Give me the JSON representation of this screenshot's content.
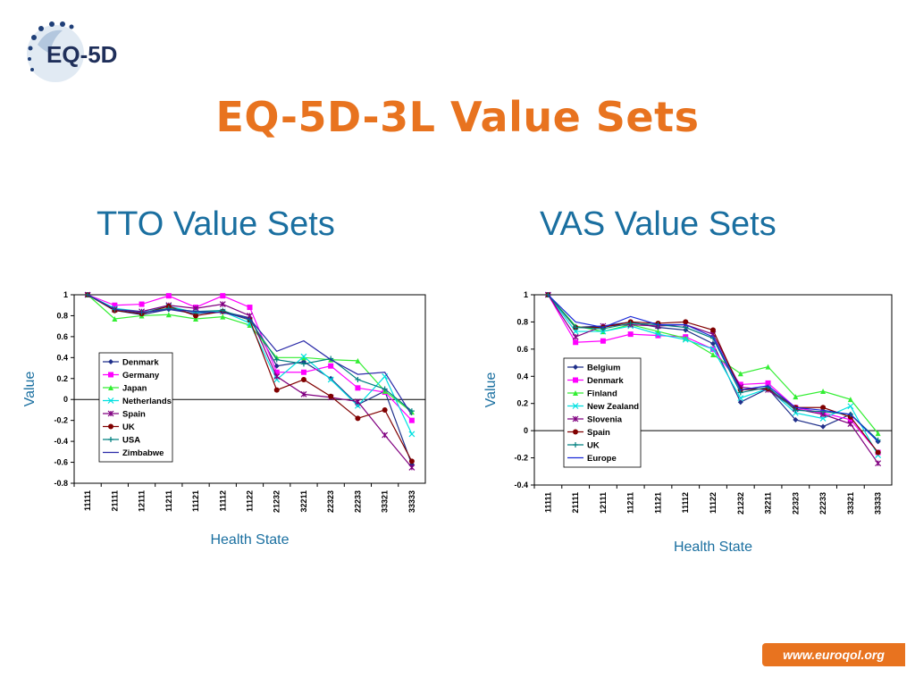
{
  "header": {
    "logo_text": "EQ-5D",
    "title": "EQ-5D-3L Value Sets",
    "left_subtitle": "TTO Value Sets",
    "right_subtitle": "VAS Value Sets",
    "footer_url": "www.euroqol.org"
  },
  "chart_data": [
    {
      "type": "line",
      "title": "TTO Value Sets",
      "xlabel": "Health State",
      "ylabel": "Value",
      "categories": [
        "11111",
        "21111",
        "12111",
        "11211",
        "11121",
        "11112",
        "11122",
        "21232",
        "32211",
        "22323",
        "22233",
        "33321",
        "33333"
      ],
      "ylim": [
        -0.8,
        1
      ],
      "yticks": [
        1,
        0.8,
        0.6,
        0.4,
        0.2,
        0,
        -0.2,
        -0.4,
        -0.6,
        -0.8
      ],
      "ytick_labels": [
        "1",
        "0.8",
        "0.6",
        "0.4",
        "0.2",
        "0",
        "-0.2",
        "-0.4",
        "-0.6",
        "-0.8"
      ],
      "grid": false,
      "legend_position": "left",
      "series": [
        {
          "name": "Denmark",
          "color": "#1f2f8a",
          "marker": "diamond",
          "values": [
            1,
            0.85,
            0.81,
            0.86,
            0.82,
            0.84,
            0.78,
            0.32,
            0.36,
            0.2,
            -0.05,
            0.08,
            -0.62
          ]
        },
        {
          "name": "Germany",
          "color": "#ff00ff",
          "marker": "square",
          "values": [
            1,
            0.9,
            0.91,
            0.99,
            0.88,
            0.99,
            0.88,
            0.26,
            0.26,
            0.32,
            0.11,
            0.07,
            -0.2
          ]
        },
        {
          "name": "Japan",
          "color": "#33ee33",
          "marker": "triangle",
          "values": [
            1,
            0.77,
            0.8,
            0.81,
            0.77,
            0.79,
            0.71,
            0.4,
            0.4,
            0.38,
            0.37,
            0.08,
            -0.12
          ]
        },
        {
          "name": "Netherlands",
          "color": "#00e0e0",
          "marker": "x",
          "values": [
            1,
            0.87,
            0.84,
            0.89,
            0.83,
            0.84,
            0.73,
            0.19,
            0.41,
            0.19,
            -0.06,
            0.22,
            -0.33
          ]
        },
        {
          "name": "Spain",
          "color": "#800080",
          "marker": "star",
          "values": [
            1,
            0.86,
            0.84,
            0.9,
            0.87,
            0.91,
            0.8,
            0.22,
            0.05,
            0.02,
            -0.02,
            -0.34,
            -0.65
          ]
        },
        {
          "name": "UK",
          "color": "#800000",
          "marker": "circle",
          "values": [
            1,
            0.85,
            0.82,
            0.89,
            0.8,
            0.84,
            0.76,
            0.09,
            0.19,
            0.03,
            -0.18,
            -0.1,
            -0.59
          ]
        },
        {
          "name": "USA",
          "color": "#008080",
          "marker": "plus",
          "values": [
            1,
            0.86,
            0.83,
            0.87,
            0.84,
            0.85,
            0.76,
            0.38,
            0.34,
            0.39,
            0.19,
            0.1,
            -0.11
          ]
        },
        {
          "name": "Zimbabwe",
          "color": "#2a2aa8",
          "marker": "none",
          "values": [
            1,
            0.86,
            0.83,
            0.86,
            0.84,
            0.83,
            0.77,
            0.46,
            0.56,
            0.38,
            0.24,
            0.26,
            -0.15
          ]
        }
      ]
    },
    {
      "type": "line",
      "title": "VAS Value Sets",
      "xlabel": "Health State",
      "ylabel": "Value",
      "categories": [
        "11111",
        "21111",
        "12111",
        "11211",
        "11121",
        "11112",
        "11122",
        "21232",
        "32211",
        "22323",
        "22233",
        "33321",
        "33333"
      ],
      "ylim": [
        -0.4,
        1
      ],
      "yticks": [
        1,
        0.8,
        0.6,
        0.4,
        0.2,
        0,
        -0.2,
        -0.4
      ],
      "ytick_labels": [
        "1",
        "0.8",
        "0.6",
        "0.4",
        "0.2",
        "0",
        "-0.2",
        "-0.4"
      ],
      "grid": false,
      "legend_position": "left",
      "series": [
        {
          "name": "Belgium",
          "color": "#1f2f8a",
          "marker": "diamond",
          "values": [
            1,
            0.76,
            0.77,
            0.8,
            0.76,
            0.74,
            0.64,
            0.21,
            0.31,
            0.08,
            0.03,
            0.12,
            -0.08
          ]
        },
        {
          "name": "Denmark",
          "color": "#ff00ff",
          "marker": "square",
          "values": [
            1,
            0.65,
            0.66,
            0.71,
            0.7,
            0.69,
            0.6,
            0.34,
            0.35,
            0.17,
            0.13,
            0.08,
            -0.16
          ]
        },
        {
          "name": "Finland",
          "color": "#33ee33",
          "marker": "triangle",
          "values": [
            1,
            0.77,
            0.73,
            0.78,
            0.73,
            0.68,
            0.56,
            0.42,
            0.47,
            0.25,
            0.29,
            0.23,
            -0.02
          ]
        },
        {
          "name": "New Zealand",
          "color": "#00e0e0",
          "marker": "x",
          "values": [
            1,
            0.73,
            0.73,
            0.77,
            0.71,
            0.67,
            0.6,
            0.24,
            0.31,
            0.13,
            0.09,
            0.18,
            -0.18
          ]
        },
        {
          "name": "Slovenia",
          "color": "#800080",
          "marker": "star",
          "values": [
            1,
            0.69,
            0.77,
            0.78,
            0.77,
            0.78,
            0.71,
            0.32,
            0.3,
            0.16,
            0.12,
            0.05,
            -0.24
          ]
        },
        {
          "name": "Spain",
          "color": "#800000",
          "marker": "circle",
          "values": [
            1,
            0.76,
            0.76,
            0.8,
            0.79,
            0.8,
            0.74,
            0.3,
            0.31,
            0.17,
            0.17,
            0.1,
            -0.16
          ]
        },
        {
          "name": "UK",
          "color": "#008080",
          "marker": "plus",
          "values": [
            1,
            0.76,
            0.75,
            0.79,
            0.78,
            0.76,
            0.68,
            0.28,
            0.32,
            0.15,
            0.14,
            0.12,
            -0.07
          ]
        },
        {
          "name": "Europe",
          "color": "#1a2ad8",
          "marker": "none",
          "values": [
            1,
            0.8,
            0.76,
            0.84,
            0.78,
            0.78,
            0.69,
            0.3,
            0.33,
            0.17,
            0.15,
            0.12,
            -0.08
          ]
        }
      ]
    }
  ]
}
